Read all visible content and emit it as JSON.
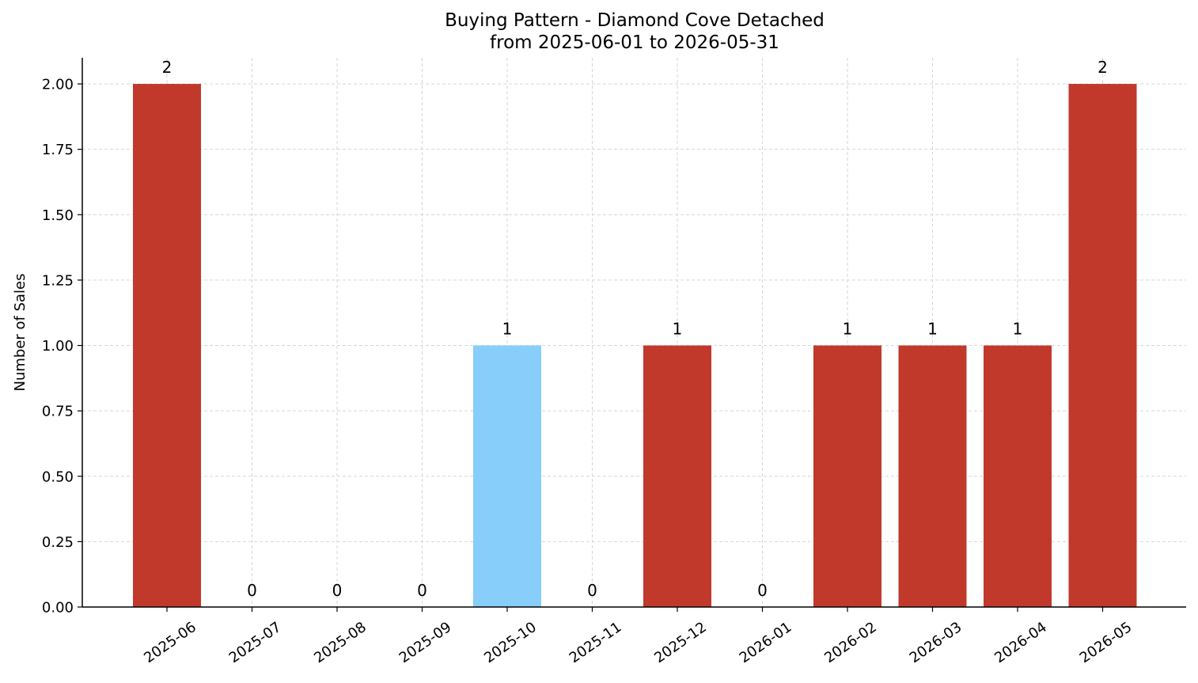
{
  "chart_data": {
    "type": "bar",
    "title": "Buying Pattern - Diamond Cove Detached",
    "subtitle": "from 2025-06-01 to 2026-05-31",
    "xlabel": "",
    "ylabel": "Number of Sales",
    "categories": [
      "2025-06",
      "2025-07",
      "2025-08",
      "2025-09",
      "2025-10",
      "2025-11",
      "2025-12",
      "2026-01",
      "2026-02",
      "2026-03",
      "2026-04",
      "2026-05"
    ],
    "values": [
      2,
      0,
      0,
      0,
      1,
      0,
      1,
      0,
      1,
      1,
      1,
      2
    ],
    "data_labels": [
      "2",
      "0",
      "0",
      "0",
      "1",
      "0",
      "1",
      "0",
      "1",
      "1",
      "1",
      "2"
    ],
    "bar_colors": [
      "#c0392b",
      "#c0392b",
      "#c0392b",
      "#c0392b",
      "#87cefa",
      "#c0392b",
      "#c0392b",
      "#c0392b",
      "#c0392b",
      "#c0392b",
      "#c0392b",
      "#c0392b"
    ],
    "ylim": [
      0,
      2.1
    ],
    "yticks": [
      "0.00",
      "0.25",
      "0.50",
      "0.75",
      "1.00",
      "1.25",
      "1.50",
      "1.75",
      "2.00"
    ],
    "grid": true,
    "legend": "none"
  }
}
